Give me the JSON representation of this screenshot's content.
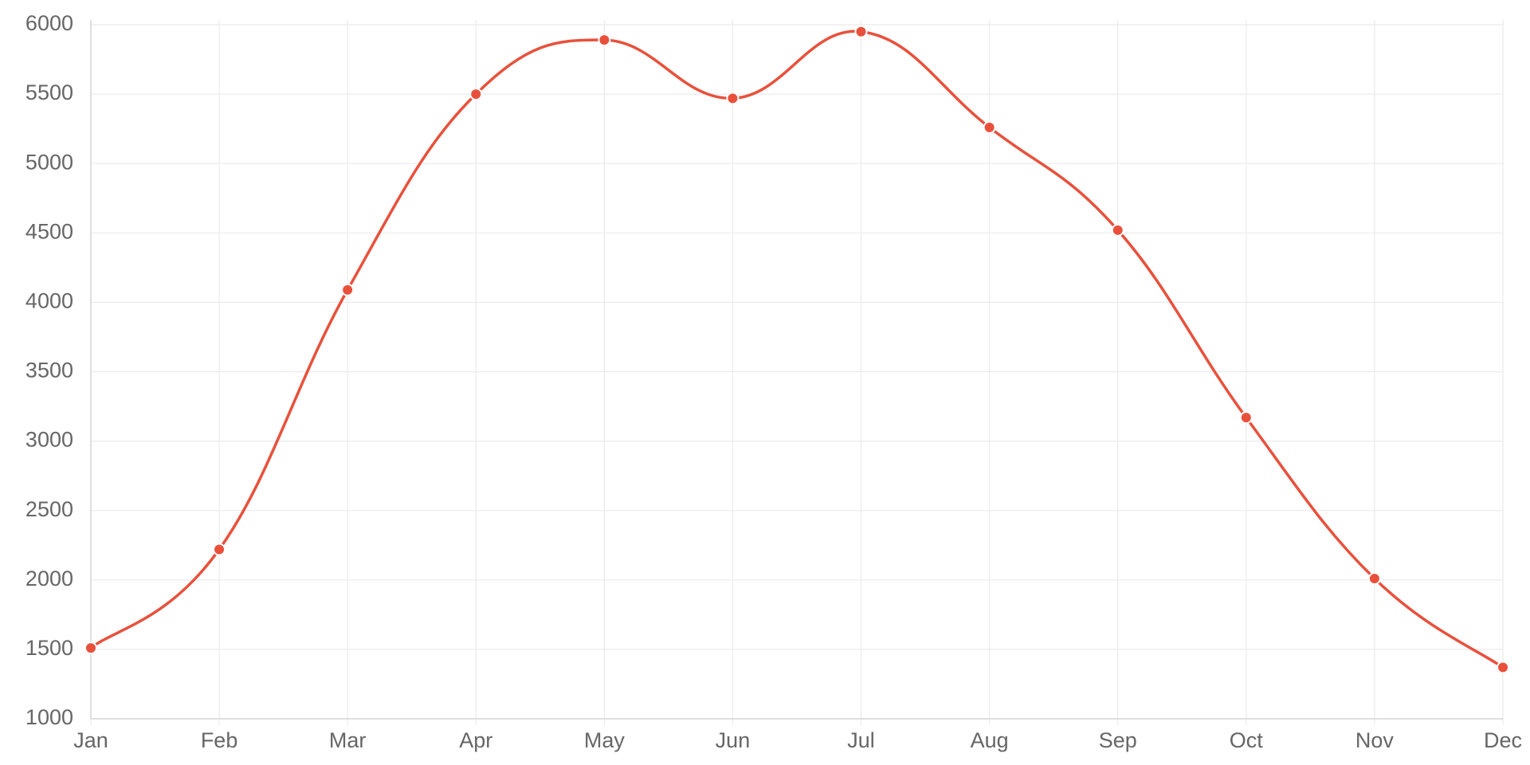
{
  "chart_data": {
    "type": "line",
    "categories": [
      "Jan",
      "Feb",
      "Mar",
      "Apr",
      "May",
      "Jun",
      "Jul",
      "Aug",
      "Sep",
      "Oct",
      "Nov",
      "Dec"
    ],
    "series": [
      {
        "color": "#e9503b",
        "values": [
          1510,
          2220,
          4090,
          5500,
          5890,
          5470,
          5950,
          5260,
          4520,
          3170,
          2010,
          1370
        ]
      }
    ],
    "ylim": [
      1000,
      6000
    ],
    "yticks": [
      1000,
      1500,
      2000,
      2500,
      3000,
      3500,
      4000,
      4500,
      5000,
      5500,
      6000
    ],
    "grid": true
  }
}
